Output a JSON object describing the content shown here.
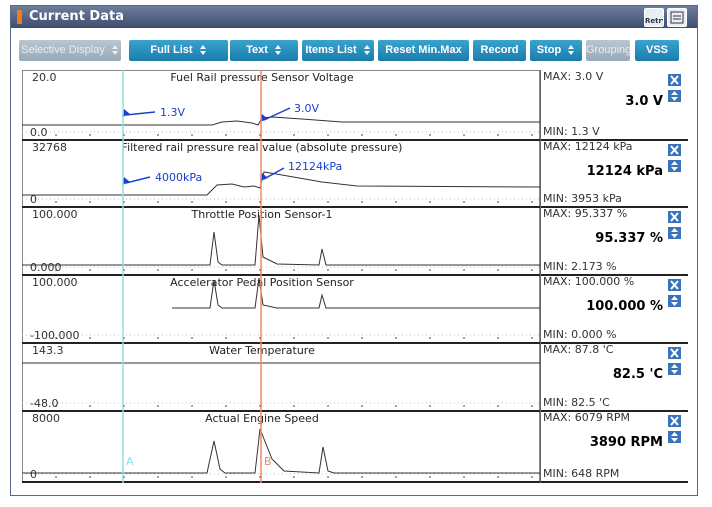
{
  "window": {
    "title": "Current Data",
    "retry": "Retry"
  },
  "toolbar": [
    {
      "label": "Selective Display",
      "dropdown": true,
      "enabled": false
    },
    {
      "label": "Full List",
      "dropdown": true,
      "enabled": true
    },
    {
      "label": "Text",
      "dropdown": true,
      "enabled": true
    },
    {
      "label": "Items List",
      "dropdown": true,
      "enabled": true
    },
    {
      "label": "Reset Min.Max",
      "dropdown": false,
      "enabled": true
    },
    {
      "label": "Record",
      "dropdown": false,
      "enabled": true
    },
    {
      "label": "Stop",
      "dropdown": true,
      "enabled": true
    },
    {
      "label": "Grouping",
      "dropdown": false,
      "enabled": false
    },
    {
      "label": "VSS",
      "dropdown": false,
      "enabled": true
    }
  ],
  "cursors": [
    "A",
    "B"
  ],
  "panels": [
    {
      "title": "Fuel Rail pressure Sensor Voltage",
      "top": "20.0",
      "bottom": "0.0",
      "max": "MAX:   3.0 V",
      "current": "3.0 V",
      "min": "MIN:   1.3 V",
      "annotations": [
        "1.3V",
        "3.0V"
      ]
    },
    {
      "title": "Filtered rail pressure real value (absolute pressure)",
      "top": "32768",
      "bottom": "0",
      "max": "MAX: 12124 kPa",
      "current": "12124 kPa",
      "min": "MIN:  3953 kPa",
      "annotations": [
        "4000kPa",
        "12124kPa"
      ]
    },
    {
      "title": "Throttle Position Sensor-1",
      "top": "100.000",
      "bottom": "0.000",
      "max": "MAX: 95.337 %",
      "current": "95.337 %",
      "min": "MIN: 2.173 %",
      "annotations": []
    },
    {
      "title": "Accelerator Pedal Position Sensor",
      "top": "100.000",
      "bottom": "-100.000",
      "max": "MAX: 100.000 %",
      "current": "100.000 %",
      "min": "MIN: 0.000 %",
      "annotations": []
    },
    {
      "title": "Water Temperature",
      "top": "143.3",
      "bottom": "-48.0",
      "max": "MAX:  87.8 'C",
      "current": "82.5 'C",
      "min": "MIN:  82.5 'C",
      "annotations": []
    },
    {
      "title": "Actual Engine Speed",
      "top": "8000",
      "bottom": "0",
      "max": "MAX:  6079 RPM",
      "current": "3890 RPM",
      "min": "MIN:    648 RPM",
      "annotations": []
    }
  ]
}
